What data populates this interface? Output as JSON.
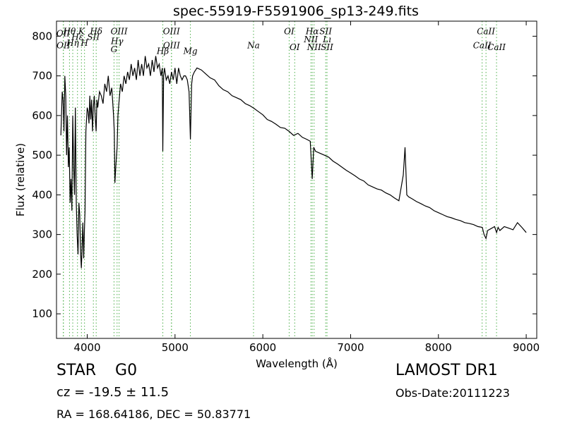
{
  "chart_data": {
    "type": "line",
    "title": "spec-55919-F5591906_sp13-249.fits",
    "xlabel": "Wavelength (Å)",
    "ylabel": "Flux (relative)",
    "xlim": [
      3650,
      9120
    ],
    "ylim": [
      38,
      838
    ],
    "xticks": [
      4000,
      5000,
      6000,
      7000,
      8000,
      9000
    ],
    "yticks": [
      100,
      200,
      300,
      400,
      500,
      600,
      700,
      800
    ],
    "grid": false,
    "series": [
      {
        "color": "#000000",
        "x": [
          3700,
          3715,
          3725,
          3735,
          3745,
          3755,
          3765,
          3775,
          3785,
          3795,
          3805,
          3815,
          3825,
          3835,
          3845,
          3855,
          3865,
          3875,
          3885,
          3895,
          3905,
          3915,
          3925,
          3933,
          3940,
          3950,
          3960,
          3968,
          3975,
          3985,
          4000,
          4010,
          4020,
          4030,
          4040,
          4050,
          4060,
          4070,
          4080,
          4090,
          4101,
          4110,
          4120,
          4140,
          4160,
          4180,
          4200,
          4220,
          4240,
          4260,
          4280,
          4300,
          4308,
          4315,
          4325,
          4340,
          4350,
          4360,
          4380,
          4400,
          4420,
          4440,
          4460,
          4480,
          4500,
          4520,
          4540,
          4560,
          4580,
          4600,
          4620,
          4640,
          4660,
          4680,
          4700,
          4720,
          4740,
          4760,
          4780,
          4800,
          4820,
          4840,
          4855,
          4861,
          4870,
          4880,
          4900,
          4920,
          4940,
          4960,
          4980,
          5000,
          5020,
          5040,
          5060,
          5080,
          5100,
          5120,
          5140,
          5160,
          5175,
          5183,
          5190,
          5200,
          5220,
          5250,
          5300,
          5350,
          5400,
          5450,
          5500,
          5550,
          5600,
          5650,
          5700,
          5750,
          5800,
          5850,
          5900,
          5950,
          6000,
          6050,
          6100,
          6150,
          6200,
          6250,
          6300,
          6350,
          6400,
          6450,
          6500,
          6540,
          6563,
          6580,
          6600,
          6650,
          6700,
          6750,
          6800,
          6850,
          6900,
          6950,
          7000,
          7050,
          7100,
          7150,
          7200,
          7250,
          7300,
          7350,
          7400,
          7450,
          7500,
          7550,
          7600,
          7620,
          7640,
          7660,
          7700,
          7750,
          7800,
          7850,
          7900,
          7950,
          8000,
          8050,
          8100,
          8150,
          8200,
          8250,
          8300,
          8350,
          8400,
          8450,
          8500,
          8520,
          8542,
          8560,
          8600,
          8640,
          8662,
          8680,
          8700,
          8750,
          8800,
          8850,
          8900,
          8950,
          9000
        ],
        "y": [
          550,
          660,
          640,
          560,
          700,
          650,
          500,
          600,
          470,
          520,
          380,
          440,
          360,
          600,
          480,
          400,
          620,
          380,
          300,
          250,
          380,
          350,
          250,
          215,
          260,
          330,
          240,
          310,
          360,
          560,
          620,
          610,
          580,
          650,
          590,
          640,
          560,
          620,
          650,
          600,
          560,
          640,
          620,
          660,
          650,
          630,
          680,
          660,
          700,
          650,
          670,
          600,
          560,
          430,
          470,
          520,
          600,
          630,
          680,
          660,
          700,
          680,
          710,
          690,
          730,
          700,
          720,
          690,
          740,
          700,
          730,
          700,
          750,
          720,
          730,
          700,
          740,
          710,
          750,
          720,
          730,
          700,
          720,
          510,
          700,
          720,
          690,
          700,
          680,
          710,
          690,
          720,
          680,
          720,
          700,
          690,
          700,
          700,
          690,
          660,
          540,
          620,
          680,
          700,
          710,
          720,
          715,
          705,
          695,
          690,
          675,
          665,
          660,
          650,
          645,
          640,
          630,
          625,
          618,
          610,
          602,
          590,
          585,
          578,
          570,
          568,
          560,
          550,
          555,
          545,
          540,
          535,
          440,
          520,
          510,
          505,
          500,
          495,
          485,
          478,
          470,
          462,
          455,
          448,
          440,
          435,
          425,
          420,
          415,
          412,
          405,
          400,
          392,
          385,
          450,
          520,
          400,
          395,
          390,
          383,
          378,
          372,
          368,
          360,
          355,
          350,
          345,
          342,
          338,
          335,
          330,
          328,
          325,
          320,
          318,
          300,
          290,
          310,
          315,
          320,
          305,
          318,
          310,
          320,
          316,
          312,
          330,
          318,
          305
        ]
      }
    ],
    "lines": [
      {
        "name": "OII",
        "x": 3727,
        "y": 800
      },
      {
        "name": "OII",
        "x": 3729,
        "y": 770
      },
      {
        "name": "Hθ",
        "x": 3798,
        "y": 805
      },
      {
        "name": "Hη",
        "x": 3835,
        "y": 776
      },
      {
        "name": "K",
        "x": 3934,
        "y": 805
      },
      {
        "name": "Hε",
        "x": 3889,
        "y": 791
      },
      {
        "name": "H",
        "x": 3969,
        "y": 776
      },
      {
        "name": "SII",
        "x": 4070,
        "y": 791
      },
      {
        "name": "Hδ",
        "x": 4102,
        "y": 805
      },
      {
        "name": "OIII",
        "x": 4363,
        "y": 805
      },
      {
        "name": "Hγ",
        "x": 4340,
        "y": 780
      },
      {
        "name": "G",
        "x": 4305,
        "y": 760
      },
      {
        "name": "OIII",
        "x": 4959,
        "y": 805
      },
      {
        "name": "OIII",
        "x": 4960,
        "y": 770
      },
      {
        "name": "Hβ",
        "x": 4861,
        "y": 755
      },
      {
        "name": "Mg",
        "x": 5175,
        "y": 755
      },
      {
        "name": "Na",
        "x": 5894,
        "y": 770
      },
      {
        "name": "OI",
        "x": 6300,
        "y": 805
      },
      {
        "name": "OI",
        "x": 6363,
        "y": 765
      },
      {
        "name": "Hα",
        "x": 6563,
        "y": 805
      },
      {
        "name": "SII",
        "x": 6716,
        "y": 805
      },
      {
        "name": "NII",
        "x": 6548,
        "y": 785
      },
      {
        "name": "Lı",
        "x": 6731,
        "y": 785
      },
      {
        "name": "NII",
        "x": 6584,
        "y": 765
      },
      {
        "name": "SII",
        "x": 6731,
        "y": 765
      },
      {
        "name": "CaII",
        "x": 8542,
        "y": 805
      },
      {
        "name": "CaII",
        "x": 8498,
        "y": 770
      },
      {
        "name": "CaII",
        "x": 8662,
        "y": 765
      }
    ]
  },
  "info": {
    "object_class": "STAR",
    "object_subclass": "G0",
    "redshift": "cz = -19.5 ± 11.5",
    "coordinates": "RA = 168.64186, DEC = 50.83771",
    "survey": "LAMOST DR1",
    "obs_date": "Obs-Date:20111223"
  },
  "colors": {
    "spectrum": "#000000",
    "line_markers": "#4daf4a"
  }
}
